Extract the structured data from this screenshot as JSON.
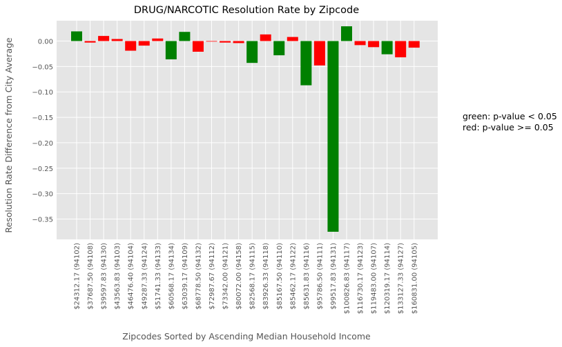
{
  "chart_data": {
    "type": "bar",
    "title": "DRUG/NARCOTIC Resolution Rate by Zipcode",
    "xlabel": "Zipcodes Sorted by Ascending Median Household Income",
    "ylabel": "Resolution Rate Difference from City Average",
    "ylim": [
      -0.39,
      0.04
    ],
    "yticks": [
      0.0,
      -0.05,
      -0.1,
      -0.15,
      -0.2,
      -0.25,
      -0.3,
      -0.35
    ],
    "ytick_labels": [
      "0.00",
      "−0.05",
      "−0.10",
      "−0.15",
      "−0.20",
      "−0.25",
      "−0.30",
      "−0.35"
    ],
    "grid": true,
    "colors": {
      "significant": "#008000",
      "not_significant": "#ff0000",
      "background": "#e5e5e5",
      "grid": "#ffffff"
    },
    "categories": [
      "$24312.17 (94102)",
      "$37687.50 (94108)",
      "$39597.83 (94130)",
      "$43563.83 (94103)",
      "$46476.40 (94104)",
      "$49287.33 (94124)",
      "$51741.33 (94133)",
      "$60568.17 (94134)",
      "$63039.17 (94109)",
      "$68778.50 (94132)",
      "$72987.67 (94112)",
      "$73342.00 (94121)",
      "$80072.00 (94158)",
      "$82568.17 (94115)",
      "$83926.33 (94118)",
      "$85167.50 (94110)",
      "$85462.17 (94122)",
      "$85631.83 (94116)",
      "$95786.50 (94111)",
      "$99517.83 (94131)",
      "$100826.83 (94117)",
      "$116730.17 (94123)",
      "$119483.00 (94107)",
      "$120319.17 (94114)",
      "$133127.33 (94127)",
      "$160831.00 (94105)"
    ],
    "values": [
      0.019,
      -0.003,
      0.01,
      0.004,
      -0.019,
      -0.009,
      0.005,
      -0.036,
      0.018,
      -0.021,
      -0.001,
      -0.003,
      -0.004,
      -0.043,
      0.013,
      -0.028,
      0.008,
      -0.087,
      -0.048,
      -0.375,
      0.029,
      -0.008,
      -0.012,
      -0.026,
      -0.032,
      -0.013
    ],
    "significant": [
      true,
      false,
      false,
      false,
      false,
      false,
      false,
      true,
      true,
      false,
      false,
      false,
      false,
      true,
      false,
      true,
      false,
      true,
      false,
      true,
      true,
      false,
      false,
      true,
      false,
      false
    ],
    "legend": [
      "green: p-value < 0.05",
      "red: p-value >= 0.05"
    ]
  }
}
